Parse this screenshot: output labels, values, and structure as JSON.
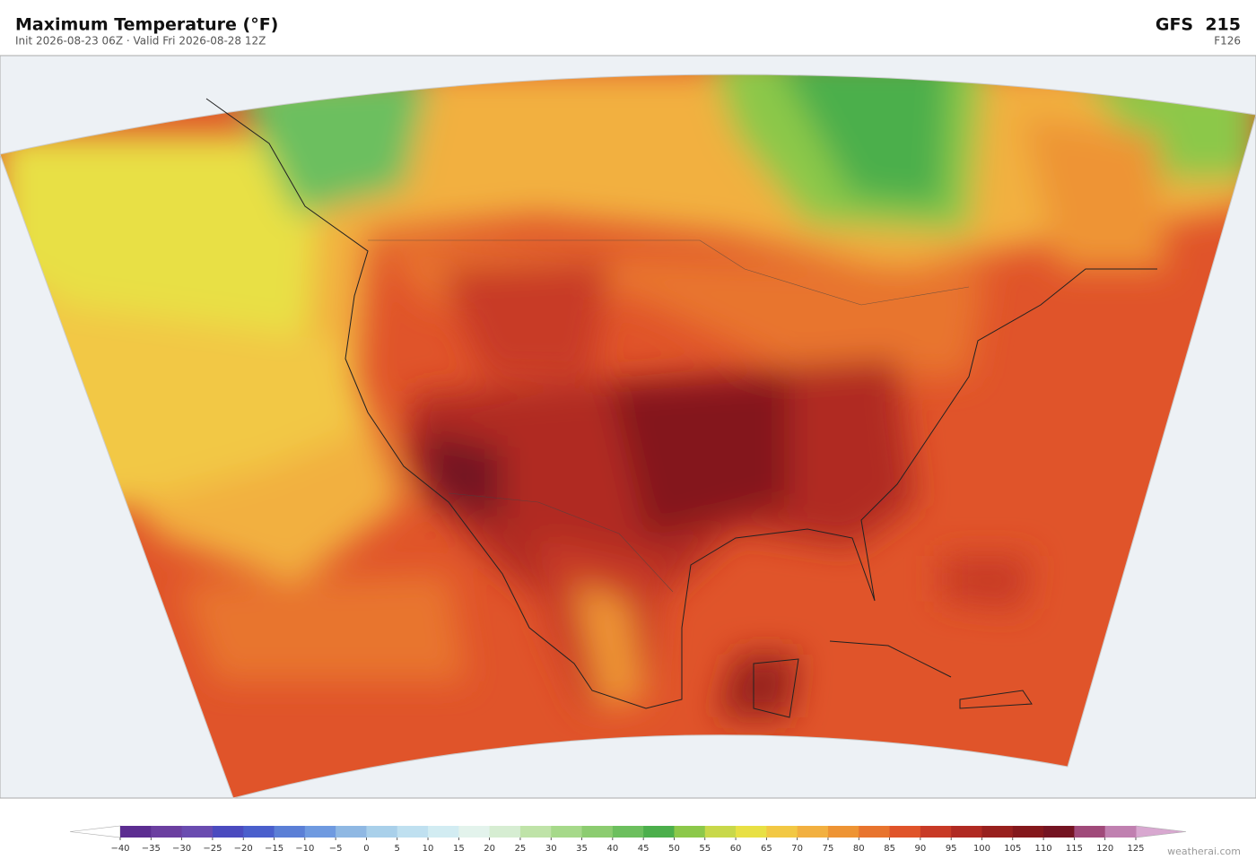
{
  "header": {
    "title": "Maximum Temperature  (°F)",
    "subtitle": "Init 2026-08-23 06Z  ·  Valid Fri 2026-08-28 12Z",
    "model": "GFS  215",
    "forecast_hour": "F126"
  },
  "colorbar": {
    "ticks": [
      {
        "value": -40,
        "label": "−40"
      },
      {
        "value": -35,
        "label": "−35"
      },
      {
        "value": -30,
        "label": "−30"
      },
      {
        "value": -25,
        "label": "−25"
      },
      {
        "value": -20,
        "label": "−20"
      },
      {
        "value": -15,
        "label": "−15"
      },
      {
        "value": -10,
        "label": "−10"
      },
      {
        "value": -5,
        "label": "−5"
      },
      0,
      5,
      10,
      15,
      20,
      25,
      30,
      35,
      40,
      45,
      50,
      55,
      60,
      65,
      70,
      75,
      80,
      85,
      90,
      95,
      100,
      105,
      110,
      115,
      120,
      125
    ],
    "colors": [
      "#5c2d91",
      "#6b3fa0",
      "#6a4cb0",
      "#4b4bbf",
      "#4a5fcc",
      "#5b7fd6",
      "#6f9ae0",
      "#8fb8e3",
      "#a9d0ea",
      "#bfe0f0",
      "#d2ecf2",
      "#e3f3ec",
      "#d6edd2",
      "#bfe3a8",
      "#a6d98a",
      "#8ccc70",
      "#6cbf5e",
      "#4caf4c",
      "#8cc84a",
      "#c8d84a",
      "#e8e044",
      "#f2c844",
      "#f2b040",
      "#ee9434",
      "#e8742e",
      "#e0542a",
      "#c83a26",
      "#b02a22",
      "#98201e",
      "#84181c",
      "#741422",
      "#a04a7a",
      "#c080b0"
    ],
    "under_color": "#ffffff",
    "over_color": "#d8a8d0"
  },
  "footer": {
    "credit": "weatherai.com"
  }
}
